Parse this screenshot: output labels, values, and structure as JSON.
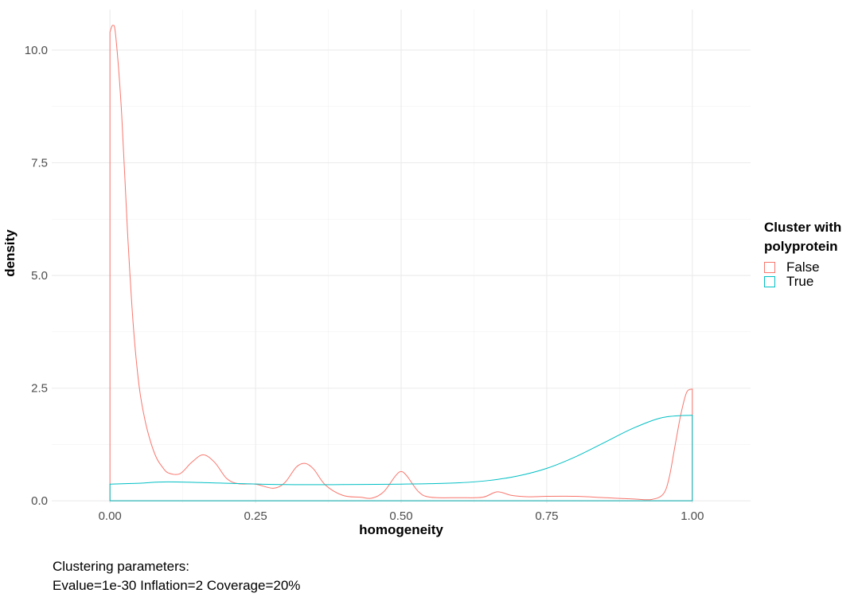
{
  "chart_data": {
    "type": "area",
    "xlabel": "homogeneity",
    "ylabel": "density",
    "xlim": [
      -0.1,
      1.1
    ],
    "ylim": [
      -0.05,
      10.9
    ],
    "x_ticks": [
      0,
      0.25,
      0.5,
      0.75,
      1.0
    ],
    "x_tick_labels": [
      "0.00",
      "0.25",
      "0.50",
      "0.75",
      "1.00"
    ],
    "y_ticks": [
      0,
      2.5,
      5.0,
      7.5,
      10.0
    ],
    "y_tick_labels": [
      "0.0",
      "2.5",
      "5.0",
      "7.5",
      "10.0"
    ],
    "grid": true,
    "legend_position": "right",
    "legend_title": [
      "Cluster with",
      "polyprotein"
    ],
    "series": [
      {
        "name": "False",
        "color": "#F8766D",
        "x": [
          0,
          0.005,
          0.01,
          0.02,
          0.03,
          0.04,
          0.05,
          0.06,
          0.07,
          0.08,
          0.09,
          0.1,
          0.12,
          0.14,
          0.16,
          0.18,
          0.2,
          0.22,
          0.25,
          0.28,
          0.3,
          0.32,
          0.335,
          0.35,
          0.37,
          0.4,
          0.43,
          0.45,
          0.47,
          0.49,
          0.5,
          0.51,
          0.53,
          0.55,
          0.6,
          0.64,
          0.665,
          0.69,
          0.72,
          0.75,
          0.8,
          0.85,
          0.9,
          0.93,
          0.95,
          0.96,
          0.97,
          0.98,
          0.99,
          1.0
        ],
        "values": [
          10.4,
          10.55,
          10.3,
          8.6,
          6.0,
          3.9,
          2.55,
          1.8,
          1.3,
          0.95,
          0.75,
          0.62,
          0.6,
          0.85,
          1.02,
          0.85,
          0.5,
          0.38,
          0.37,
          0.28,
          0.4,
          0.75,
          0.83,
          0.7,
          0.35,
          0.12,
          0.08,
          0.06,
          0.2,
          0.55,
          0.65,
          0.55,
          0.2,
          0.08,
          0.07,
          0.08,
          0.2,
          0.12,
          0.09,
          0.1,
          0.1,
          0.07,
          0.04,
          0.03,
          0.15,
          0.5,
          1.2,
          1.9,
          2.4,
          2.48
        ]
      },
      {
        "name": "True",
        "color": "#00BFC4",
        "x": [
          0,
          0.05,
          0.1,
          0.2,
          0.3,
          0.4,
          0.5,
          0.55,
          0.6,
          0.65,
          0.7,
          0.75,
          0.8,
          0.85,
          0.9,
          0.95,
          1.0
        ],
        "values": [
          0.37,
          0.39,
          0.42,
          0.39,
          0.36,
          0.36,
          0.37,
          0.38,
          0.4,
          0.45,
          0.55,
          0.72,
          0.98,
          1.3,
          1.62,
          1.85,
          1.9
        ]
      }
    ]
  },
  "caption": {
    "line1": "Clustering parameters:",
    "line2": "Evalue=1e-30 Inflation=2 Coverage=20%"
  }
}
